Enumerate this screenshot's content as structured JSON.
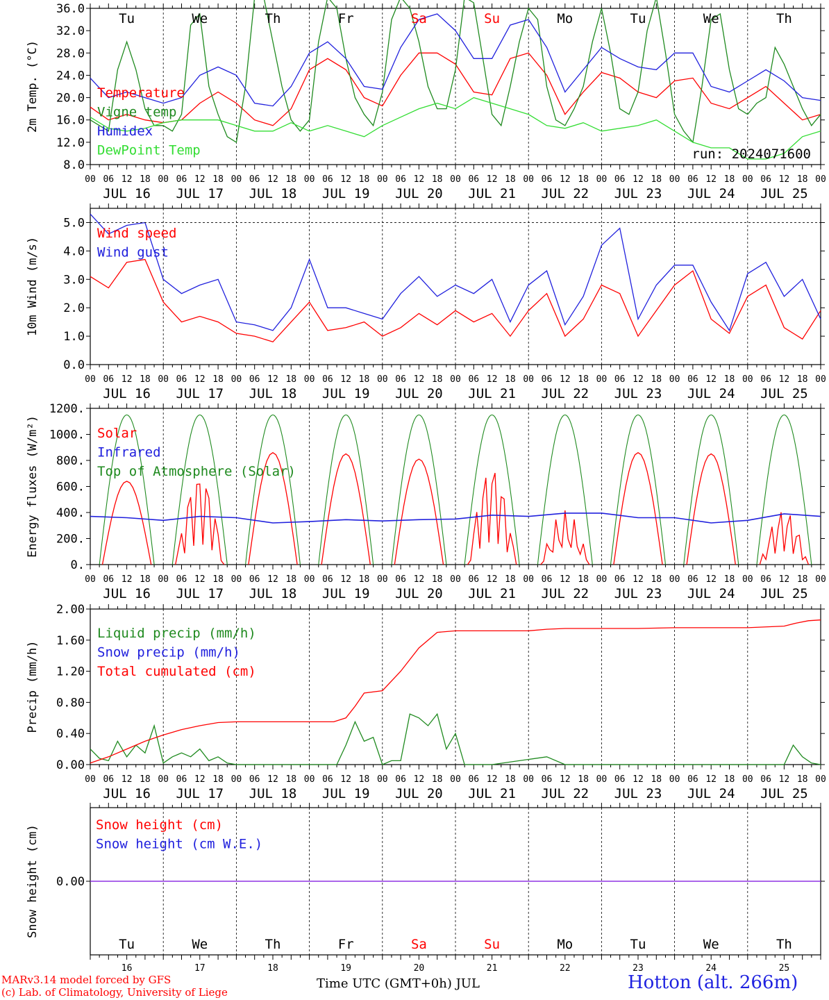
{
  "colors": {
    "red": "#ff0000",
    "green": "#1f8a1f",
    "blue": "#2020dd",
    "lightgreen": "#33dd33",
    "purple": "#8a2be2",
    "weekend": "#ff0000"
  },
  "days": [
    "Tu",
    "We",
    "Th",
    "Fr",
    "Sa",
    "Su",
    "Mo",
    "Tu",
    "We",
    "Th"
  ],
  "weekend_days": [
    4,
    5
  ],
  "date_labels": [
    "JUL 16",
    "JUL 17",
    "JUL 18",
    "JUL 19",
    "JUL 20",
    "JUL 21",
    "JUL 22",
    "JUL 23",
    "JUL 24",
    "JUL 25"
  ],
  "date_numbers": [
    "16",
    "17",
    "18",
    "19",
    "20",
    "21",
    "22",
    "23",
    "24",
    "25"
  ],
  "hour_ticks": [
    "00",
    "06",
    "12",
    "18"
  ],
  "hour_end": "00",
  "run_label": "run: 2024071600",
  "footer": {
    "model": "MARv3.14 model forced by GFS",
    "lab": "(c) Lab. of Climatology, University of Liege",
    "xlabel": "Time UTC (GMT+0h) JUL",
    "station": "Hotton (alt. 266m)"
  },
  "chart_data": [
    {
      "type": "line",
      "ylabel": "2m Temp. (°C)",
      "ylim": [
        8,
        36
      ],
      "yticks": [
        "8.0",
        "12.0",
        "16.0",
        "20.0",
        "24.0",
        "28.0",
        "32.0",
        "36.0"
      ],
      "series": [
        {
          "name": "Temperature",
          "color": "red",
          "x": [
            0,
            6,
            12,
            18,
            24,
            30,
            36,
            42,
            48,
            54,
            60,
            66,
            72,
            78,
            84,
            90,
            96,
            102,
            108,
            114,
            120,
            126,
            132,
            138,
            144,
            150,
            156,
            162,
            168,
            174,
            180,
            186,
            192,
            198,
            204,
            210,
            216,
            222,
            228,
            234,
            240
          ],
          "y": [
            18.3,
            16,
            17,
            16,
            15.5,
            16,
            19,
            21,
            19,
            16,
            15,
            18,
            25,
            27,
            25,
            20,
            18.5,
            24,
            28,
            28,
            26,
            21,
            20.5,
            27,
            28,
            24,
            17,
            21,
            24.5,
            23.5,
            21,
            20,
            23,
            23.5,
            19,
            18,
            20,
            22,
            19,
            16,
            17
          ]
        },
        {
          "name": "Vigne temp",
          "color": "green",
          "x": [
            0,
            6,
            9,
            12,
            15,
            18,
            21,
            24,
            27,
            30,
            33,
            36,
            39,
            42,
            45,
            48,
            51,
            54,
            57,
            60,
            63,
            66,
            69,
            72,
            75,
            78,
            81,
            84,
            87,
            90,
            93,
            96,
            99,
            102,
            105,
            108,
            111,
            114,
            117,
            120,
            123,
            126,
            129,
            132,
            135,
            138,
            141,
            144,
            147,
            150,
            153,
            156,
            159,
            162,
            165,
            168,
            171,
            174,
            177,
            180,
            183,
            186,
            189,
            192,
            195,
            198,
            201,
            204,
            207,
            210,
            213,
            216,
            219,
            222,
            225,
            228,
            231,
            234,
            237,
            240
          ],
          "y": [
            16,
            14,
            25,
            30,
            25,
            18,
            15,
            15,
            14,
            17,
            33,
            35,
            22,
            17,
            13,
            12,
            22,
            38,
            38,
            30,
            22,
            16,
            14,
            16,
            30,
            38,
            36,
            27,
            20,
            17,
            15,
            21,
            34,
            38,
            36,
            30,
            22,
            18,
            18,
            25,
            38,
            37,
            27,
            17,
            15,
            22,
            30,
            36,
            34,
            22,
            16,
            15,
            18,
            22,
            30,
            36,
            28,
            18,
            17,
            21,
            32,
            38,
            28,
            17,
            14,
            12,
            22,
            34,
            35,
            25,
            18,
            17,
            19,
            20,
            29,
            26,
            22,
            18,
            15,
            17
          ]
        },
        {
          "name": "Humidex",
          "color": "blue",
          "x": [
            0,
            6,
            12,
            18,
            24,
            30,
            36,
            42,
            48,
            54,
            60,
            66,
            72,
            78,
            84,
            90,
            96,
            102,
            108,
            114,
            120,
            126,
            132,
            138,
            144,
            150,
            156,
            162,
            168,
            174,
            180,
            186,
            192,
            198,
            204,
            210,
            216,
            222,
            228,
            234,
            240
          ],
          "y": [
            23.5,
            20,
            21,
            20,
            19,
            20,
            24,
            25.5,
            24,
            19,
            18.5,
            22,
            28,
            30,
            27,
            22,
            21.5,
            29,
            34,
            35,
            32,
            27,
            27,
            33,
            34,
            29,
            21,
            25,
            29,
            27,
            25.5,
            25,
            28,
            28,
            22,
            21,
            23,
            25,
            23,
            20,
            19.5
          ]
        },
        {
          "name": "DewPoint Temp",
          "color": "lightgreen",
          "x": [
            0,
            6,
            12,
            18,
            24,
            30,
            36,
            42,
            48,
            54,
            60,
            66,
            72,
            78,
            84,
            90,
            96,
            102,
            108,
            114,
            120,
            126,
            132,
            138,
            144,
            150,
            156,
            162,
            168,
            174,
            180,
            186,
            192,
            198,
            204,
            210,
            216,
            222,
            228,
            234,
            240
          ],
          "y": [
            16.5,
            14.5,
            14,
            14.5,
            15.5,
            16,
            16,
            16,
            15,
            14,
            14,
            15.5,
            14,
            15,
            14,
            13,
            15,
            16.5,
            18,
            19,
            18,
            20,
            19,
            18,
            17,
            15,
            14.5,
            15.5,
            14,
            14.5,
            15,
            16,
            14,
            12,
            11,
            11,
            9,
            9,
            10,
            13,
            14
          ]
        }
      ]
    },
    {
      "type": "line",
      "ylabel": "10m Wind (m/s)",
      "ylim": [
        0,
        5.5
      ],
      "yticks": [
        "0.0",
        "1.0",
        "2.0",
        "3.0",
        "4.0",
        "5.0"
      ],
      "series": [
        {
          "name": "Wind speed",
          "color": "red",
          "x": [
            0,
            6,
            12,
            18,
            24,
            30,
            36,
            42,
            48,
            54,
            60,
            66,
            72,
            78,
            84,
            90,
            96,
            102,
            108,
            114,
            120,
            126,
            132,
            138,
            144,
            150,
            156,
            162,
            168,
            174,
            180,
            186,
            192,
            198,
            204,
            210,
            216,
            222,
            228,
            234,
            240
          ],
          "y": [
            3.1,
            2.7,
            3.6,
            3.7,
            2.2,
            1.5,
            1.7,
            1.5,
            1.1,
            1.0,
            0.8,
            1.5,
            2.2,
            1.2,
            1.3,
            1.5,
            1.0,
            1.3,
            1.8,
            1.4,
            1.9,
            1.5,
            1.8,
            1.0,
            1.9,
            2.5,
            1.0,
            1.6,
            2.8,
            2.5,
            1.0,
            1.9,
            2.8,
            3.3,
            1.6,
            1.1,
            2.4,
            2.8,
            1.3,
            0.9,
            1.9
          ]
        },
        {
          "name": "Wind gust",
          "color": "blue",
          "x": [
            0,
            6,
            12,
            18,
            24,
            30,
            36,
            42,
            48,
            54,
            60,
            66,
            72,
            78,
            84,
            90,
            96,
            102,
            108,
            114,
            120,
            126,
            132,
            138,
            144,
            150,
            156,
            162,
            168,
            174,
            180,
            186,
            192,
            198,
            204,
            210,
            216,
            222,
            228,
            234,
            240
          ],
          "y": [
            5.3,
            4.6,
            4.9,
            5.0,
            3.0,
            2.5,
            2.8,
            3.0,
            1.5,
            1.4,
            1.2,
            2.0,
            3.7,
            2.0,
            2.0,
            1.8,
            1.6,
            2.5,
            3.1,
            2.4,
            2.8,
            2.5,
            3.0,
            1.5,
            2.8,
            3.3,
            1.4,
            2.4,
            4.2,
            4.8,
            1.6,
            2.8,
            3.5,
            3.5,
            2.2,
            1.2,
            3.2,
            3.6,
            2.4,
            3.0,
            1.6
          ]
        }
      ]
    },
    {
      "type": "line",
      "ylabel": "Energy fluxes (W/m²)",
      "ylim": [
        0,
        1200
      ],
      "yticks": [
        "0.",
        "200.",
        "400.",
        "600.",
        "800.",
        "1000.",
        "1200."
      ],
      "series": [
        {
          "name": "Solar",
          "color": "red",
          "daily_peaks": [
            640,
            780,
            860,
            850,
            810,
            840,
            420,
            860,
            850,
            450
          ]
        },
        {
          "name": "Infrared",
          "color": "blue",
          "x": [
            0,
            12,
            24,
            36,
            48,
            60,
            72,
            84,
            96,
            108,
            120,
            132,
            144,
            156,
            168,
            180,
            192,
            204,
            216,
            228,
            240
          ],
          "y": [
            370,
            360,
            340,
            370,
            360,
            320,
            330,
            345,
            335,
            345,
            350,
            380,
            370,
            395,
            395,
            360,
            360,
            320,
            340,
            390,
            370
          ]
        },
        {
          "name": "Top of Atmosphere (Solar)",
          "color": "green",
          "daily_peak": 1150
        }
      ]
    },
    {
      "type": "line",
      "ylabel": "Precip (mm/h)",
      "ylim": [
        0,
        2.0
      ],
      "yticks": [
        "0.00",
        "0.40",
        "0.80",
        "1.20",
        "1.60",
        "2.00"
      ],
      "series": [
        {
          "name": "Liquid precip (mm/h)",
          "color": "green",
          "x": [
            0,
            3,
            6,
            9,
            12,
            15,
            18,
            21,
            24,
            27,
            30,
            33,
            36,
            39,
            42,
            45,
            48,
            81,
            84,
            87,
            90,
            93,
            96,
            99,
            102,
            105,
            108,
            111,
            114,
            117,
            120,
            123,
            126,
            129,
            132,
            150,
            156,
            159,
            162,
            228,
            231,
            234,
            237,
            240
          ],
          "y": [
            0.2,
            0.08,
            0.05,
            0.3,
            0.1,
            0.25,
            0.15,
            0.5,
            0.02,
            0.1,
            0.15,
            0.1,
            0.2,
            0.05,
            0.1,
            0.02,
            0,
            0,
            0.25,
            0.55,
            0.3,
            0.35,
            0,
            0.05,
            0.05,
            0.65,
            0.6,
            0.5,
            0.65,
            0.2,
            0.4,
            0,
            0,
            0,
            0,
            0.1,
            0,
            0,
            0,
            0,
            0.25,
            0.1,
            0.02,
            0
          ]
        },
        {
          "name": "Snow precip (mm/h)",
          "color": "blue",
          "x": [],
          "y": []
        },
        {
          "name": "Total cumulated (cm)",
          "color": "red",
          "x": [
            0,
            6,
            12,
            18,
            24,
            30,
            36,
            42,
            48,
            60,
            72,
            80,
            84,
            87,
            90,
            96,
            102,
            108,
            114,
            120,
            126,
            132,
            144,
            150,
            156,
            168,
            180,
            192,
            204,
            216,
            228,
            232,
            236,
            240
          ],
          "y": [
            0.02,
            0.1,
            0.2,
            0.3,
            0.38,
            0.45,
            0.5,
            0.54,
            0.55,
            0.55,
            0.55,
            0.55,
            0.6,
            0.75,
            0.92,
            0.95,
            1.2,
            1.5,
            1.7,
            1.72,
            1.72,
            1.72,
            1.72,
            1.74,
            1.75,
            1.75,
            1.75,
            1.76,
            1.76,
            1.76,
            1.78,
            1.82,
            1.85,
            1.86
          ]
        }
      ]
    },
    {
      "type": "line",
      "ylabel": "Snow height (cm)",
      "ylim": [
        -1,
        1
      ],
      "yticks": [
        "0.00"
      ],
      "series": [
        {
          "name": "Snow height (cm)",
          "color": "red",
          "x": [
            0,
            240
          ],
          "y": [
            0,
            0
          ]
        },
        {
          "name": "Snow height (cm W.E.)",
          "color": "blue",
          "x": [
            0,
            240
          ],
          "y": [
            0,
            0
          ]
        }
      ]
    }
  ]
}
